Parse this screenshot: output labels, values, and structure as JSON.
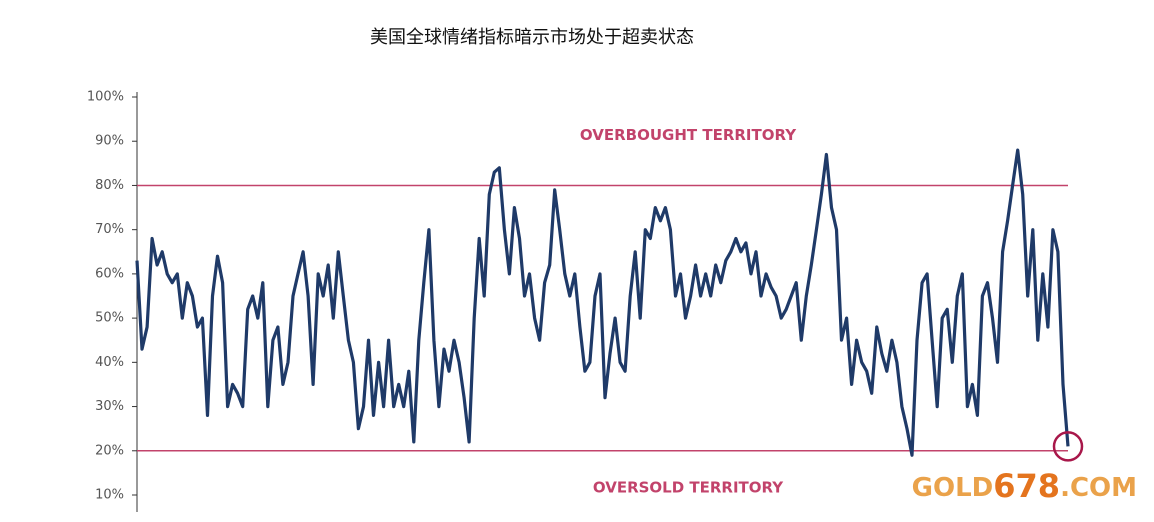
{
  "chart_data": {
    "type": "line",
    "title": "美国全球情绪指标暗示市场处于超卖状态",
    "categories": [
      null,
      null,
      null,
      null,
      null,
      null,
      null,
      null,
      null,
      null,
      null,
      null,
      null,
      null,
      null,
      null,
      null,
      null,
      null,
      null,
      null,
      null,
      null,
      null,
      null,
      null,
      null,
      null,
      null,
      null,
      null,
      null,
      null,
      null,
      null,
      null,
      null,
      null,
      null,
      null,
      null,
      null,
      null,
      null,
      null,
      null,
      null,
      null,
      null,
      null,
      null,
      null,
      null,
      null,
      null,
      null,
      null,
      null,
      null,
      null,
      null,
      null,
      null,
      null,
      null,
      null,
      null,
      null,
      null,
      null,
      null,
      null,
      null,
      null,
      null,
      null,
      null,
      null,
      null,
      null,
      null,
      null,
      null,
      null,
      null,
      null,
      null,
      null,
      null,
      null,
      null,
      null,
      null,
      null,
      null,
      null,
      null,
      null,
      null,
      null,
      null,
      null,
      null,
      null,
      null,
      null,
      null,
      null,
      null,
      null,
      null,
      null,
      null,
      null,
      null,
      null,
      null,
      null,
      null,
      null,
      null,
      null,
      null,
      null,
      null,
      null,
      null,
      null,
      null,
      null,
      null,
      null,
      null,
      null,
      null,
      null,
      null,
      null,
      null,
      null,
      null,
      null,
      null,
      null,
      null,
      null,
      null,
      null,
      null,
      null,
      null,
      null,
      null,
      null,
      null,
      null,
      null,
      null,
      null,
      null,
      null,
      null,
      null,
      null,
      null,
      null,
      null,
      null,
      null,
      null,
      null,
      null,
      null,
      null,
      null,
      null,
      null,
      null,
      null,
      null,
      null,
      null,
      null,
      null,
      null,
      null
    ],
    "values": [
      63,
      43,
      48,
      68,
      62,
      65,
      60,
      58,
      60,
      50,
      58,
      55,
      48,
      50,
      28,
      55,
      64,
      58,
      30,
      35,
      33,
      30,
      52,
      55,
      50,
      58,
      30,
      45,
      48,
      35,
      40,
      55,
      60,
      65,
      55,
      35,
      60,
      55,
      62,
      50,
      65,
      55,
      45,
      40,
      25,
      30,
      45,
      28,
      40,
      30,
      45,
      30,
      35,
      30,
      38,
      22,
      45,
      58,
      70,
      45,
      30,
      43,
      38,
      45,
      40,
      32,
      22,
      50,
      68,
      55,
      78,
      83,
      84,
      70,
      60,
      75,
      68,
      55,
      60,
      50,
      45,
      58,
      62,
      79,
      70,
      60,
      55,
      60,
      48,
      38,
      40,
      55,
      60,
      32,
      42,
      50,
      40,
      38,
      55,
      65,
      50,
      70,
      68,
      75,
      72,
      75,
      70,
      55,
      60,
      50,
      55,
      62,
      55,
      60,
      55,
      62,
      58,
      63,
      65,
      68,
      65,
      67,
      60,
      65,
      55,
      60,
      57,
      55,
      50,
      52,
      55,
      58,
      45,
      55,
      62,
      70,
      78,
      87,
      75,
      70,
      45,
      50,
      35,
      45,
      40,
      38,
      33,
      48,
      42,
      38,
      45,
      40,
      30,
      25,
      19,
      45,
      58,
      60,
      45,
      30,
      50,
      52,
      40,
      55,
      60,
      30,
      35,
      28,
      55,
      58,
      50,
      40,
      65,
      72,
      80,
      88,
      78,
      55,
      70,
      45,
      60,
      48,
      70,
      65,
      35,
      21
    ],
    "color": "#1f3a68",
    "ylim": [
      10,
      100
    ],
    "yticks": [
      {
        "value": 10,
        "label": "10%"
      },
      {
        "value": 20,
        "label": "20%"
      },
      {
        "value": 30,
        "label": "30%"
      },
      {
        "value": 40,
        "label": "40%"
      },
      {
        "value": 50,
        "label": "50%"
      },
      {
        "value": 60,
        "label": "60%"
      },
      {
        "value": 70,
        "label": "70%"
      },
      {
        "value": 80,
        "label": "80%"
      },
      {
        "value": 90,
        "label": "90%"
      },
      {
        "value": 100,
        "label": "100%"
      }
    ],
    "reference_lines": [
      {
        "value": 80,
        "label": "OVERBOUGHT TERRITORY"
      },
      {
        "value": 20,
        "label": "OVERSOLD TERRITORY"
      }
    ],
    "reference_color": "#c2436b",
    "watermark": {
      "part1": "GOLD",
      "part2": "678",
      "part3": ".COM"
    }
  }
}
